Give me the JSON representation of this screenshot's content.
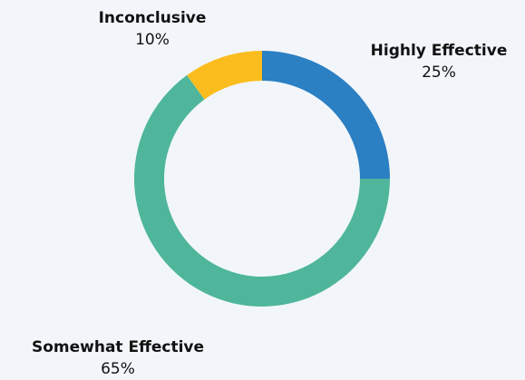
{
  "chart_data": {
    "type": "donut",
    "categories": [
      "Highly Effective",
      "Somewhat Effective",
      "Inconclusive"
    ],
    "values": [
      25,
      65,
      10
    ],
    "value_labels": [
      "25%",
      "65%",
      "10%"
    ],
    "colors": [
      "#2b7fc3",
      "#4fb69b",
      "#fbbd1e"
    ]
  }
}
